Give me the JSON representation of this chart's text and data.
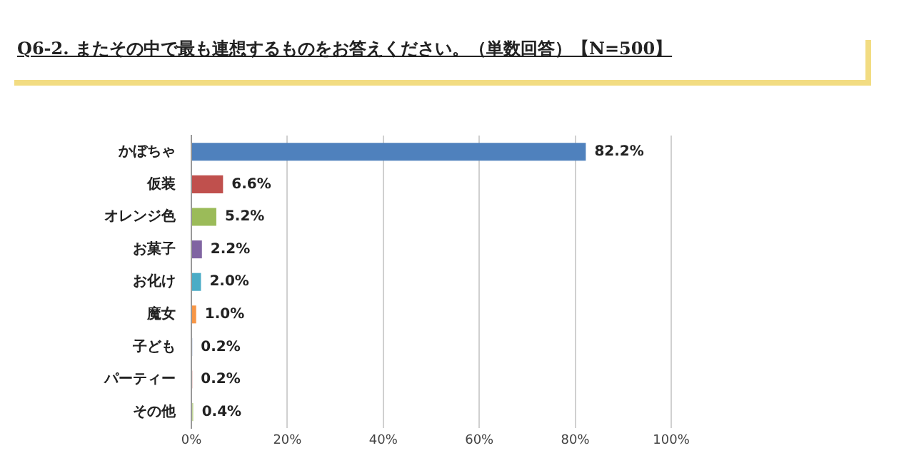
{
  "chart_data": {
    "type": "bar",
    "orientation": "horizontal",
    "title": "Q6-2. またその中で最も連想するものをお答えください。（単数回答）【N=500】",
    "categories": [
      "かぼちゃ",
      "仮装",
      "オレンジ色",
      "お菓子",
      "お化け",
      "魔女",
      "子ども",
      "パーティー",
      "その他"
    ],
    "values": [
      82.2,
      6.6,
      5.2,
      2.2,
      2.0,
      1.0,
      0.2,
      0.2,
      0.4
    ],
    "colors": [
      "#4f81bd",
      "#c0504d",
      "#9bbb59",
      "#8064a2",
      "#4bacc6",
      "#f79646",
      "#a9b9d6",
      "#d99694",
      "#c3d69b"
    ],
    "value_labels": [
      "82.2%",
      "6.6%",
      "5.2%",
      "2.2%",
      "2.0%",
      "1.0%",
      "0.2%",
      "0.2%",
      "0.4%"
    ],
    "xlim": [
      0,
      100
    ],
    "xticks": [
      {
        "value": 0,
        "label": "0%"
      },
      {
        "value": 20,
        "label": "20%"
      },
      {
        "value": 40,
        "label": "40%"
      },
      {
        "value": 60,
        "label": "60%"
      },
      {
        "value": 80,
        "label": "80%"
      },
      {
        "value": 100,
        "label": "100%"
      }
    ],
    "grid": "x",
    "legend": false
  }
}
